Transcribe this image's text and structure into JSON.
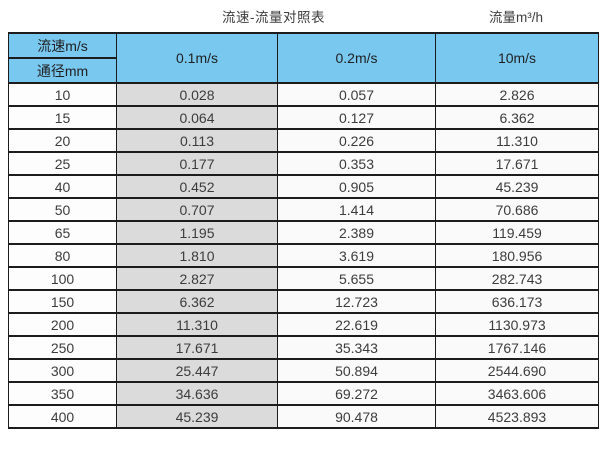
{
  "page": {
    "main_title": "流速-流量对照表",
    "right_title": "流量m³/h"
  },
  "table": {
    "header": {
      "corner_top": "流速m/s",
      "corner_bottom": "通径mm",
      "velocity_columns": [
        "0.1m/s",
        "0.2m/s",
        "10m/s"
      ]
    },
    "rows": [
      {
        "diameter": "10",
        "values": [
          "0.028",
          "0.057",
          "2.826"
        ]
      },
      {
        "diameter": "15",
        "values": [
          "0.064",
          "0.127",
          "6.362"
        ]
      },
      {
        "diameter": "20",
        "values": [
          "0.113",
          "0.226",
          "11.310"
        ]
      },
      {
        "diameter": "25",
        "values": [
          "0.177",
          "0.353",
          "17.671"
        ]
      },
      {
        "diameter": "40",
        "values": [
          "0.452",
          "0.905",
          "45.239"
        ]
      },
      {
        "diameter": "50",
        "values": [
          "0.707",
          "1.414",
          "70.686"
        ]
      },
      {
        "diameter": "65",
        "values": [
          "1.195",
          "2.389",
          "119.459"
        ]
      },
      {
        "diameter": "80",
        "values": [
          "1.810",
          "3.619",
          "180.956"
        ]
      },
      {
        "diameter": "100",
        "values": [
          "2.827",
          "5.655",
          "282.743"
        ]
      },
      {
        "diameter": "150",
        "values": [
          "6.362",
          "12.723",
          "636.173"
        ]
      },
      {
        "diameter": "200",
        "values": [
          "11.310",
          "22.619",
          "1130.973"
        ]
      },
      {
        "diameter": "250",
        "values": [
          "17.671",
          "35.343",
          "1767.146"
        ]
      },
      {
        "diameter": "300",
        "values": [
          "25.447",
          "50.894",
          "2544.690"
        ]
      },
      {
        "diameter": "350",
        "values": [
          "34.636",
          "69.272",
          "3463.606"
        ]
      },
      {
        "diameter": "400",
        "values": [
          "45.239",
          "90.478",
          "4523.893"
        ]
      }
    ]
  },
  "colors": {
    "header_light_blue": "#79c8f0",
    "header_dark_blue": "#6aaccf",
    "grey_column": "#dbdbdb",
    "border": "#1c1c1c",
    "body_text": "#3c3c3c"
  }
}
